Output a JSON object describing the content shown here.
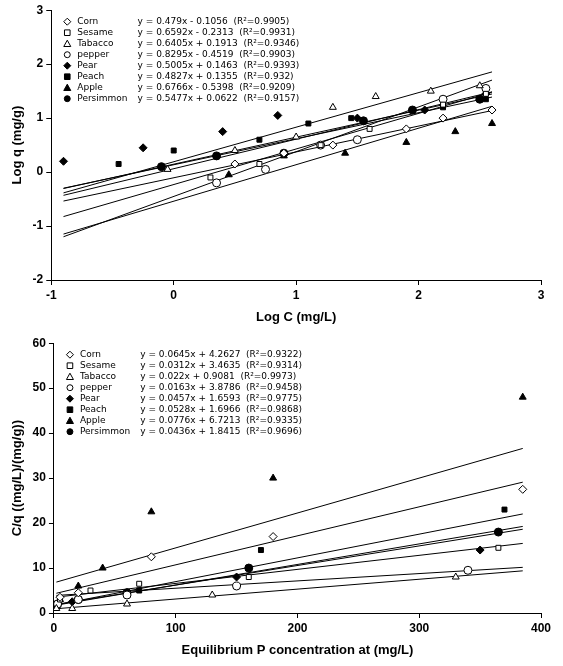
{
  "chart_data": [
    {
      "type": "scatter",
      "x_label": "Log C (mg/L)",
      "y_label": "Log q (mg/g)",
      "xlim": [
        -1,
        3
      ],
      "xticks": [
        -1,
        0,
        1,
        2,
        3
      ],
      "ylim": [
        -2,
        3
      ],
      "yticks": [
        -2,
        -1,
        0,
        1,
        2,
        3
      ],
      "grid": false,
      "legend": "upper left",
      "series": [
        {
          "name": "Corn",
          "color": "#000000",
          "marker": "open_diamond",
          "equation": "y = 0.479x - 0.1056  (R²=0.9905)",
          "slope": 0.479,
          "intercept": -0.1056,
          "x": [
            0.5,
            0.9,
            1.3,
            1.9,
            2.2,
            2.6
          ],
          "values": [
            0.15,
            0.35,
            0.5,
            0.8,
            1.0,
            1.15
          ]
        },
        {
          "name": "Sesame",
          "color": "#000000",
          "marker": "open_square",
          "equation": "y = 0.6592x - 0.2313  (R²=0.9931)",
          "slope": 0.6592,
          "intercept": -0.2313,
          "x": [
            0.3,
            0.7,
            1.2,
            1.6,
            2.2,
            2.55
          ],
          "values": [
            -0.1,
            0.15,
            0.5,
            0.8,
            1.25,
            1.45
          ]
        },
        {
          "name": "Tabacco",
          "color": "#000000",
          "marker": "open_triangle",
          "equation": "y = 0.6405x + 0.1913  (R²=0.9346)",
          "slope": 0.6405,
          "intercept": 0.1913,
          "x": [
            -0.05,
            0.5,
            1.0,
            1.3,
            1.65,
            2.1,
            2.5
          ],
          "values": [
            0.05,
            0.4,
            0.65,
            1.2,
            1.4,
            1.5,
            1.6
          ]
        },
        {
          "name": "pepper",
          "color": "#000000",
          "marker": "open_circle",
          "equation": "y = 0.8295x - 0.4519  (R²=0.9903)",
          "slope": 0.8295,
          "intercept": -0.4519,
          "x": [
            0.35,
            0.75,
            1.2,
            1.5,
            2.2,
            2.55
          ],
          "values": [
            -0.2,
            0.05,
            0.5,
            0.6,
            1.35,
            1.55
          ]
        },
        {
          "name": "Pear",
          "color": "#000000",
          "marker": "filled_diamond",
          "equation": "y = 0.5005x + 0.1463  (R²=0.9393)",
          "slope": 0.5005,
          "intercept": 0.1463,
          "x": [
            -0.9,
            -0.25,
            0.4,
            0.85,
            1.5,
            2.05,
            2.55
          ],
          "values": [
            0.2,
            0.45,
            0.75,
            1.05,
            1.0,
            1.15,
            1.45
          ]
        },
        {
          "name": "Peach",
          "color": "#000000",
          "marker": "filled_square",
          "equation": "y = 0.4827x + 0.1355  (R²=0.932)",
          "slope": 0.4827,
          "intercept": 0.1355,
          "x": [
            -0.45,
            0,
            0.7,
            1.1,
            1.45,
            2.2,
            2.55
          ],
          "values": [
            0.15,
            0.4,
            0.6,
            0.9,
            1.0,
            1.2,
            1.35
          ]
        },
        {
          "name": "Apple",
          "color": "#000000",
          "marker": "filled_triangle",
          "equation": "y = 0.6766x - 0.5398  (R²=0.9209)",
          "slope": 0.6766,
          "intercept": -0.5398,
          "x": [
            0.45,
            0.9,
            1.4,
            1.9,
            2.3,
            2.6
          ],
          "values": [
            -0.05,
            0.3,
            0.35,
            0.55,
            0.75,
            0.9
          ]
        },
        {
          "name": "Persimmon",
          "color": "#000000",
          "marker": "filled_circle",
          "equation": "y = 0.5477x + 0.0622  (R²=0.9157)",
          "slope": 0.5477,
          "intercept": 0.0622,
          "x": [
            -0.1,
            0.35,
            0.9,
            1.55,
            1.95,
            2.5
          ],
          "values": [
            0.1,
            0.3,
            0.35,
            0.95,
            1.15,
            1.35
          ]
        }
      ]
    },
    {
      "type": "scatter",
      "x_label": "Equilibrium P concentration at (mg/L)",
      "y_label": "C/q ((mg/L)/(mg/g))",
      "xlim": [
        0,
        400
      ],
      "xticks": [
        0,
        100,
        200,
        300,
        400
      ],
      "ylim": [
        0,
        60
      ],
      "yticks": [
        0,
        10,
        20,
        30,
        40,
        50,
        60
      ],
      "grid": false,
      "legend": "upper left",
      "series": [
        {
          "name": "Corn",
          "color": "#000000",
          "marker": "open_diamond",
          "equation": "y = 0.0645x + 4.2627  (R²=0.9322)",
          "slope": 0.0645,
          "intercept": 4.2627,
          "x": [
            5,
            20,
            80,
            180,
            385
          ],
          "values": [
            3.5,
            4.5,
            12.5,
            17,
            27.5
          ]
        },
        {
          "name": "Sesame",
          "color": "#000000",
          "marker": "open_square",
          "equation": "y = 0.0312x + 3.4635  (R²=0.9314)",
          "slope": 0.0312,
          "intercept": 3.4635,
          "x": [
            5,
            30,
            70,
            160,
            365
          ],
          "values": [
            3,
            5,
            6.5,
            8,
            14.5
          ]
        },
        {
          "name": "Tabacco",
          "color": "#000000",
          "marker": "open_triangle",
          "equation": "y = 0.022x + 0.9081  (R²=0.9973)",
          "slope": 0.022,
          "intercept": 0.9081,
          "x": [
            2,
            15,
            60,
            130,
            330
          ],
          "values": [
            1,
            1,
            2,
            4,
            8
          ]
        },
        {
          "name": "pepper",
          "color": "#000000",
          "marker": "open_circle",
          "equation": "y = 0.0163x + 3.8786  (R²=0.9458)",
          "slope": 0.0163,
          "intercept": 3.8786,
          "x": [
            3,
            20,
            60,
            150,
            340
          ],
          "values": [
            2,
            3,
            4,
            6,
            9.5
          ]
        },
        {
          "name": "Pear",
          "color": "#000000",
          "marker": "filled_diamond",
          "equation": "y = 0.0457x + 1.6593  (R²=0.9775)",
          "slope": 0.0457,
          "intercept": 1.6593,
          "x": [
            2,
            15,
            60,
            150,
            350
          ],
          "values": [
            1.5,
            2.5,
            4.5,
            8,
            14
          ]
        },
        {
          "name": "Peach",
          "color": "#000000",
          "marker": "filled_square",
          "equation": "y = 0.0528x + 1.6966  (R²=0.9868)",
          "slope": 0.0528,
          "intercept": 1.6966,
          "x": [
            3,
            20,
            70,
            170,
            370
          ],
          "values": [
            1.5,
            3,
            5,
            14,
            23
          ]
        },
        {
          "name": "Apple",
          "color": "#000000",
          "marker": "filled_triangle",
          "equation": "y = 0.0776x + 6.7213  (R²=0.9335)",
          "slope": 0.0776,
          "intercept": 6.7213,
          "x": [
            5,
            20,
            40,
            80,
            180,
            385
          ],
          "values": [
            3,
            6,
            10,
            22.5,
            30,
            48
          ]
        },
        {
          "name": "Persimmon",
          "color": "#000000",
          "marker": "filled_circle",
          "equation": "y = 0.0436x + 1.8415  (R²=0.9696)",
          "slope": 0.0436,
          "intercept": 1.8415,
          "x": [
            3,
            20,
            60,
            160,
            365
          ],
          "values": [
            2,
            3,
            4.5,
            10,
            18
          ]
        }
      ]
    }
  ]
}
